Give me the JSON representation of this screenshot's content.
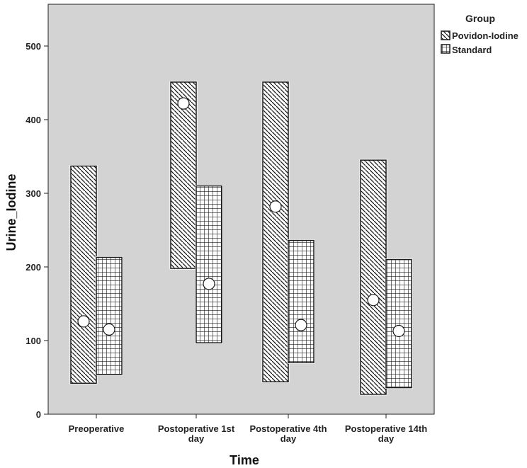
{
  "chart_data": {
    "type": "floating-bar",
    "title": "",
    "xlabel": "Time",
    "ylabel": "Urine_Iodine",
    "ylim": [
      0,
      550
    ],
    "yticks": [
      0,
      100,
      200,
      300,
      400,
      500
    ],
    "categories": [
      "Preoperative",
      "Postoperative 1st day",
      "Postoperative 4th day",
      "Postoperative 14th day"
    ],
    "legend": {
      "title": "Group",
      "position": "top-right"
    },
    "series": [
      {
        "name": "Povidon-Iodine",
        "pattern": "diagonal",
        "low": [
          42,
          198,
          44,
          27
        ],
        "high": [
          337,
          451,
          451,
          345
        ],
        "median": [
          126,
          422,
          282,
          155
        ]
      },
      {
        "name": "Standard",
        "pattern": "grid",
        "low": [
          54,
          97,
          70,
          36
        ],
        "high": [
          213,
          310,
          236,
          210
        ],
        "median": [
          115,
          177,
          121,
          113
        ]
      }
    ],
    "colors": {
      "plot_background": "#d3d3d3",
      "bar_fill": "#ffffff",
      "line": "#1a1a1a",
      "marker": "#ffffff"
    }
  }
}
